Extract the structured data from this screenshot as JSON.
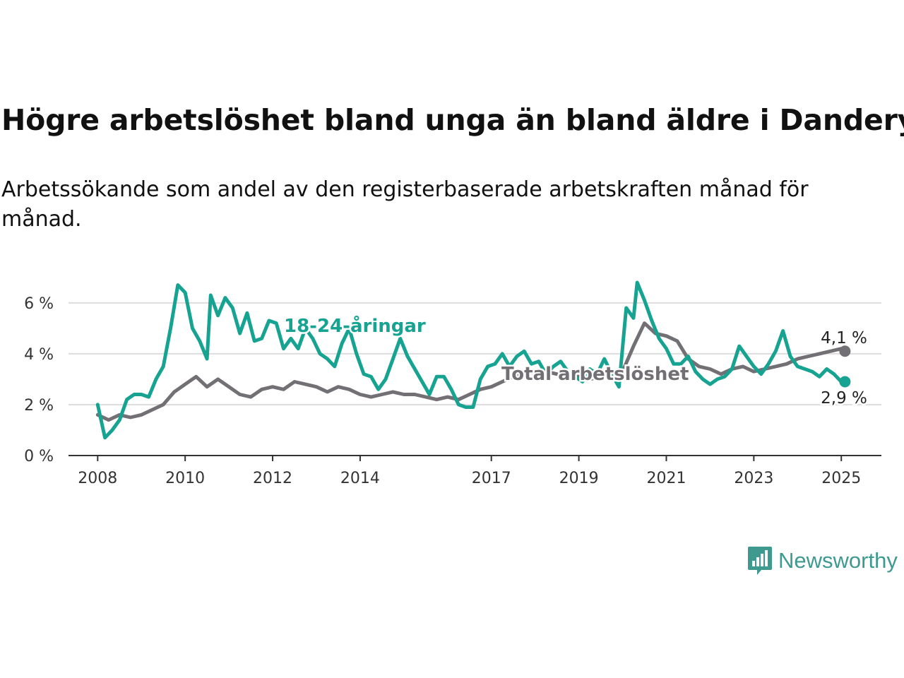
{
  "title": "Högre arbetslöshet bland unga än bland äldre i Danderyd",
  "subtitle": "Arbetssökande som andel av den registerbaserade arbetskraften månad för månad.",
  "brand": {
    "name": "Newsworthy",
    "icon": "bar-chart-speech-bubble-icon"
  },
  "colors": {
    "youth": "#17a391",
    "total": "#727075",
    "grid": "#dddddd",
    "axis": "#333333",
    "brand": "#3e9a8f"
  },
  "chart_data": {
    "type": "line",
    "grid": true,
    "ylim": [
      0,
      6.8
    ],
    "xlim": [
      "2007-05",
      "2025-12"
    ],
    "yticks": [
      {
        "value": 0,
        "label": "0 %"
      },
      {
        "value": 2,
        "label": "2 %"
      },
      {
        "value": 4,
        "label": "4 %"
      },
      {
        "value": 6,
        "label": "6 %"
      }
    ],
    "xticks": [
      {
        "date": "2008-01",
        "label": "2008"
      },
      {
        "date": "2010-01",
        "label": "2010"
      },
      {
        "date": "2012-01",
        "label": "2012"
      },
      {
        "date": "2014-01",
        "label": "2014"
      },
      {
        "date": "2017-01",
        "label": "2017"
      },
      {
        "date": "2019-01",
        "label": "2019"
      },
      {
        "date": "2021-01",
        "label": "2021"
      },
      {
        "date": "2023-01",
        "label": "2023"
      },
      {
        "date": "2025-01",
        "label": "2025"
      }
    ],
    "series": [
      {
        "name": "Total arbetslöshet",
        "color": "#727075",
        "end_label": "4,1 %",
        "points": [
          [
            "2008-01",
            1.6
          ],
          [
            "2008-04",
            1.4
          ],
          [
            "2008-07",
            1.6
          ],
          [
            "2008-10",
            1.5
          ],
          [
            "2009-01",
            1.6
          ],
          [
            "2009-04",
            1.8
          ],
          [
            "2009-07",
            2.0
          ],
          [
            "2009-10",
            2.5
          ],
          [
            "2010-01",
            2.8
          ],
          [
            "2010-04",
            3.1
          ],
          [
            "2010-07",
            2.7
          ],
          [
            "2010-10",
            3.0
          ],
          [
            "2011-01",
            2.7
          ],
          [
            "2011-04",
            2.4
          ],
          [
            "2011-07",
            2.3
          ],
          [
            "2011-10",
            2.6
          ],
          [
            "2012-01",
            2.7
          ],
          [
            "2012-04",
            2.6
          ],
          [
            "2012-07",
            2.9
          ],
          [
            "2012-10",
            2.8
          ],
          [
            "2013-01",
            2.7
          ],
          [
            "2013-04",
            2.5
          ],
          [
            "2013-07",
            2.7
          ],
          [
            "2013-10",
            2.6
          ],
          [
            "2014-01",
            2.4
          ],
          [
            "2014-04",
            2.3
          ],
          [
            "2014-07",
            2.4
          ],
          [
            "2014-10",
            2.5
          ],
          [
            "2015-01",
            2.4
          ],
          [
            "2015-04",
            2.4
          ],
          [
            "2015-07",
            2.3
          ],
          [
            "2015-10",
            2.2
          ],
          [
            "2016-01",
            2.3
          ],
          [
            "2016-04",
            2.2
          ],
          [
            "2016-07",
            2.4
          ],
          [
            "2016-10",
            2.6
          ],
          [
            "2017-01",
            2.7
          ],
          [
            "2017-04",
            2.9
          ],
          [
            "2017-07",
            3.1
          ],
          [
            "2017-10",
            3.2
          ],
          [
            "2018-01",
            3.3
          ],
          [
            "2018-04",
            3.3
          ],
          [
            "2018-07",
            3.2
          ],
          [
            "2018-10",
            3.1
          ],
          [
            "2019-01",
            3.1
          ],
          [
            "2019-04",
            3.0
          ],
          [
            "2019-07",
            3.1
          ],
          [
            "2019-10",
            3.2
          ],
          [
            "2020-01",
            3.3
          ],
          [
            "2020-04",
            4.3
          ],
          [
            "2020-07",
            5.2
          ],
          [
            "2020-10",
            4.8
          ],
          [
            "2021-01",
            4.7
          ],
          [
            "2021-04",
            4.5
          ],
          [
            "2021-07",
            3.8
          ],
          [
            "2021-10",
            3.5
          ],
          [
            "2022-01",
            3.4
          ],
          [
            "2022-04",
            3.2
          ],
          [
            "2022-07",
            3.4
          ],
          [
            "2022-10",
            3.5
          ],
          [
            "2023-01",
            3.3
          ],
          [
            "2023-04",
            3.4
          ],
          [
            "2023-07",
            3.5
          ],
          [
            "2023-10",
            3.6
          ],
          [
            "2024-01",
            3.8
          ],
          [
            "2024-04",
            3.9
          ],
          [
            "2024-07",
            4.0
          ],
          [
            "2024-10",
            4.1
          ],
          [
            "2025-01",
            4.2
          ],
          [
            "2025-02",
            4.1
          ]
        ]
      },
      {
        "name": "18-24-åringar",
        "color": "#17a391",
        "end_label": "2,9 %",
        "points": [
          [
            "2008-01",
            2.0
          ],
          [
            "2008-03",
            0.7
          ],
          [
            "2008-05",
            1.0
          ],
          [
            "2008-07",
            1.4
          ],
          [
            "2008-09",
            2.2
          ],
          [
            "2008-11",
            2.4
          ],
          [
            "2009-01",
            2.4
          ],
          [
            "2009-03",
            2.3
          ],
          [
            "2009-05",
            3.0
          ],
          [
            "2009-07",
            3.5
          ],
          [
            "2009-09",
            5.0
          ],
          [
            "2009-11",
            6.7
          ],
          [
            "2010-01",
            6.4
          ],
          [
            "2010-03",
            5.0
          ],
          [
            "2010-05",
            4.5
          ],
          [
            "2010-07",
            3.8
          ],
          [
            "2010-08",
            6.3
          ],
          [
            "2010-10",
            5.5
          ],
          [
            "2010-12",
            6.2
          ],
          [
            "2011-02",
            5.8
          ],
          [
            "2011-04",
            4.8
          ],
          [
            "2011-06",
            5.6
          ],
          [
            "2011-08",
            4.5
          ],
          [
            "2011-10",
            4.6
          ],
          [
            "2011-12",
            5.3
          ],
          [
            "2012-02",
            5.2
          ],
          [
            "2012-04",
            4.2
          ],
          [
            "2012-06",
            4.6
          ],
          [
            "2012-08",
            4.2
          ],
          [
            "2012-10",
            5.0
          ],
          [
            "2012-12",
            4.6
          ],
          [
            "2013-02",
            4.0
          ],
          [
            "2013-04",
            3.8
          ],
          [
            "2013-06",
            3.5
          ],
          [
            "2013-08",
            4.4
          ],
          [
            "2013-10",
            5.0
          ],
          [
            "2013-12",
            4.0
          ],
          [
            "2014-02",
            3.2
          ],
          [
            "2014-04",
            3.1
          ],
          [
            "2014-06",
            2.6
          ],
          [
            "2014-08",
            3.0
          ],
          [
            "2014-10",
            3.8
          ],
          [
            "2014-12",
            4.6
          ],
          [
            "2015-02",
            3.9
          ],
          [
            "2015-04",
            3.4
          ],
          [
            "2015-06",
            2.9
          ],
          [
            "2015-08",
            2.4
          ],
          [
            "2015-10",
            3.1
          ],
          [
            "2015-12",
            3.1
          ],
          [
            "2016-02",
            2.6
          ],
          [
            "2016-04",
            2.0
          ],
          [
            "2016-06",
            1.9
          ],
          [
            "2016-08",
            1.9
          ],
          [
            "2016-10",
            3.0
          ],
          [
            "2016-12",
            3.5
          ],
          [
            "2017-02",
            3.6
          ],
          [
            "2017-04",
            4.0
          ],
          [
            "2017-06",
            3.5
          ],
          [
            "2017-08",
            3.9
          ],
          [
            "2017-10",
            4.1
          ],
          [
            "2017-12",
            3.6
          ],
          [
            "2018-02",
            3.7
          ],
          [
            "2018-04",
            3.2
          ],
          [
            "2018-06",
            3.5
          ],
          [
            "2018-08",
            3.7
          ],
          [
            "2018-10",
            3.3
          ],
          [
            "2018-12",
            3.1
          ],
          [
            "2019-02",
            2.9
          ],
          [
            "2019-04",
            3.4
          ],
          [
            "2019-06",
            3.2
          ],
          [
            "2019-08",
            3.8
          ],
          [
            "2019-10",
            3.2
          ],
          [
            "2019-12",
            2.7
          ],
          [
            "2020-02",
            5.8
          ],
          [
            "2020-04",
            5.4
          ],
          [
            "2020-05",
            6.8
          ],
          [
            "2020-07",
            6.1
          ],
          [
            "2020-09",
            5.3
          ],
          [
            "2020-11",
            4.6
          ],
          [
            "2021-01",
            4.2
          ],
          [
            "2021-03",
            3.6
          ],
          [
            "2021-05",
            3.6
          ],
          [
            "2021-07",
            3.9
          ],
          [
            "2021-09",
            3.3
          ],
          [
            "2021-11",
            3.0
          ],
          [
            "2022-01",
            2.8
          ],
          [
            "2022-03",
            3.0
          ],
          [
            "2022-05",
            3.1
          ],
          [
            "2022-07",
            3.4
          ],
          [
            "2022-09",
            4.3
          ],
          [
            "2022-11",
            3.9
          ],
          [
            "2023-01",
            3.5
          ],
          [
            "2023-03",
            3.2
          ],
          [
            "2023-05",
            3.6
          ],
          [
            "2023-07",
            4.1
          ],
          [
            "2023-09",
            4.9
          ],
          [
            "2023-11",
            3.9
          ],
          [
            "2024-01",
            3.5
          ],
          [
            "2024-03",
            3.4
          ],
          [
            "2024-05",
            3.3
          ],
          [
            "2024-07",
            3.1
          ],
          [
            "2024-09",
            3.4
          ],
          [
            "2024-11",
            3.2
          ],
          [
            "2025-01",
            2.9
          ],
          [
            "2025-02",
            2.9
          ]
        ]
      }
    ],
    "annotations": [
      {
        "text": "18-24-åringar",
        "series": "18-24-åringar"
      },
      {
        "text": "Total arbetslöshet",
        "series": "Total arbetslöshet"
      }
    ]
  }
}
